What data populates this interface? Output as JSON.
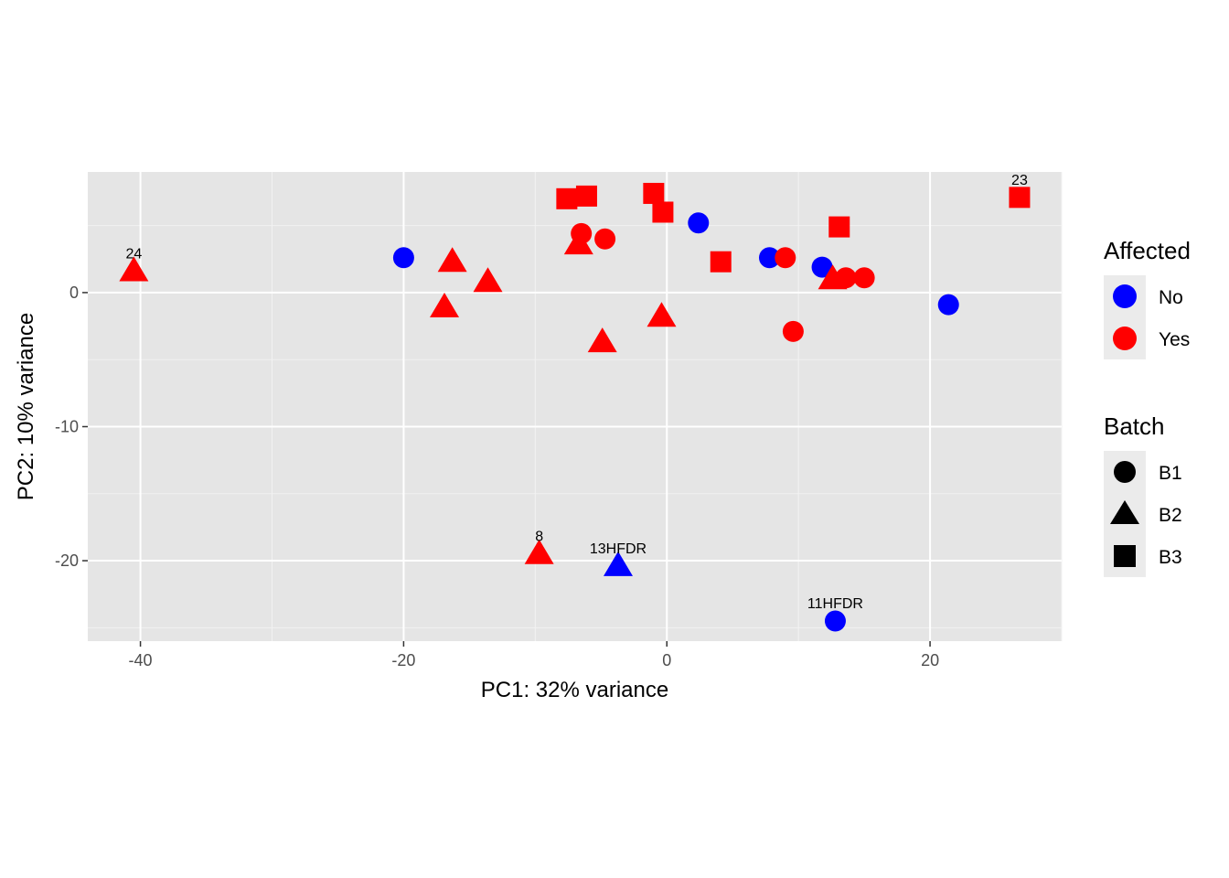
{
  "chart_data": {
    "type": "scatter",
    "xlabel": "PC1: 32% variance",
    "ylabel": "PC2: 10% variance",
    "xlim": [
      -44,
      30
    ],
    "ylim": [
      -26,
      9
    ],
    "x_ticks": [
      -40,
      -20,
      0,
      20
    ],
    "y_ticks": [
      0,
      -10,
      -20
    ],
    "x_tick_labels": [
      "-40",
      "-20",
      "0",
      "20"
    ],
    "y_tick_labels": [
      "0",
      "-10",
      "-20"
    ],
    "grid": true,
    "colors": {
      "No": "#0000ff",
      "Yes": "#ff0000"
    },
    "legends": [
      {
        "title": "Affected",
        "kind": "color",
        "entries": [
          {
            "label": "No",
            "value": "No"
          },
          {
            "label": "Yes",
            "value": "Yes"
          }
        ]
      },
      {
        "title": "Batch",
        "kind": "shape",
        "entries": [
          {
            "label": "B1",
            "value": "B1"
          },
          {
            "label": "B2",
            "value": "B2"
          },
          {
            "label": "B3",
            "value": "B3"
          }
        ]
      }
    ],
    "legend_position": "right",
    "points": [
      {
        "x": -40.5,
        "y": 1.6,
        "affected": "Yes",
        "batch": "B2",
        "label": "24"
      },
      {
        "x": -20.0,
        "y": 2.6,
        "affected": "No",
        "batch": "B1",
        "label": ""
      },
      {
        "x": -16.3,
        "y": 2.3,
        "affected": "Yes",
        "batch": "B2",
        "label": ""
      },
      {
        "x": -16.9,
        "y": -1.1,
        "affected": "Yes",
        "batch": "B2",
        "label": ""
      },
      {
        "x": -13.6,
        "y": 0.8,
        "affected": "Yes",
        "batch": "B2",
        "label": ""
      },
      {
        "x": -7.6,
        "y": 7.0,
        "affected": "Yes",
        "batch": "B3",
        "label": ""
      },
      {
        "x": -6.1,
        "y": 7.2,
        "affected": "Yes",
        "batch": "B3",
        "label": ""
      },
      {
        "x": -6.5,
        "y": 4.4,
        "affected": "Yes",
        "batch": "B1",
        "label": ""
      },
      {
        "x": -6.7,
        "y": 3.6,
        "affected": "Yes",
        "batch": "B2",
        "label": ""
      },
      {
        "x": -4.7,
        "y": 4.0,
        "affected": "Yes",
        "batch": "B1",
        "label": ""
      },
      {
        "x": -4.9,
        "y": -3.7,
        "affected": "Yes",
        "batch": "B2",
        "label": ""
      },
      {
        "x": -1.0,
        "y": 7.4,
        "affected": "Yes",
        "batch": "B3",
        "label": ""
      },
      {
        "x": -0.3,
        "y": 6.0,
        "affected": "Yes",
        "batch": "B3",
        "label": ""
      },
      {
        "x": -0.4,
        "y": -1.8,
        "affected": "Yes",
        "batch": "B2",
        "label": ""
      },
      {
        "x": 2.4,
        "y": 5.2,
        "affected": "No",
        "batch": "B1",
        "label": ""
      },
      {
        "x": 4.1,
        "y": 2.3,
        "affected": "Yes",
        "batch": "B3",
        "label": ""
      },
      {
        "x": 7.8,
        "y": 2.6,
        "affected": "No",
        "batch": "B1",
        "label": ""
      },
      {
        "x": 9.0,
        "y": 2.6,
        "affected": "Yes",
        "batch": "B1",
        "label": ""
      },
      {
        "x": 9.6,
        "y": -2.9,
        "affected": "Yes",
        "batch": "B1",
        "label": ""
      },
      {
        "x": 11.8,
        "y": 1.9,
        "affected": "No",
        "batch": "B1",
        "label": ""
      },
      {
        "x": 12.6,
        "y": 1.0,
        "affected": "Yes",
        "batch": "B2",
        "label": ""
      },
      {
        "x": 13.6,
        "y": 1.1,
        "affected": "Yes",
        "batch": "B1",
        "label": ""
      },
      {
        "x": 13.1,
        "y": 4.9,
        "affected": "Yes",
        "batch": "B3",
        "label": ""
      },
      {
        "x": 15.0,
        "y": 1.1,
        "affected": "Yes",
        "batch": "B1",
        "label": ""
      },
      {
        "x": 21.4,
        "y": -0.9,
        "affected": "No",
        "batch": "B1",
        "label": ""
      },
      {
        "x": 26.8,
        "y": 7.1,
        "affected": "Yes",
        "batch": "B3",
        "label": "23"
      },
      {
        "x": -9.7,
        "y": -19.5,
        "affected": "Yes",
        "batch": "B2",
        "label": "8"
      },
      {
        "x": -3.7,
        "y": -20.4,
        "affected": "No",
        "batch": "B2",
        "label": "13HFDR"
      },
      {
        "x": 12.8,
        "y": -24.5,
        "affected": "No",
        "batch": "B1",
        "label": "11HFDR"
      }
    ]
  }
}
